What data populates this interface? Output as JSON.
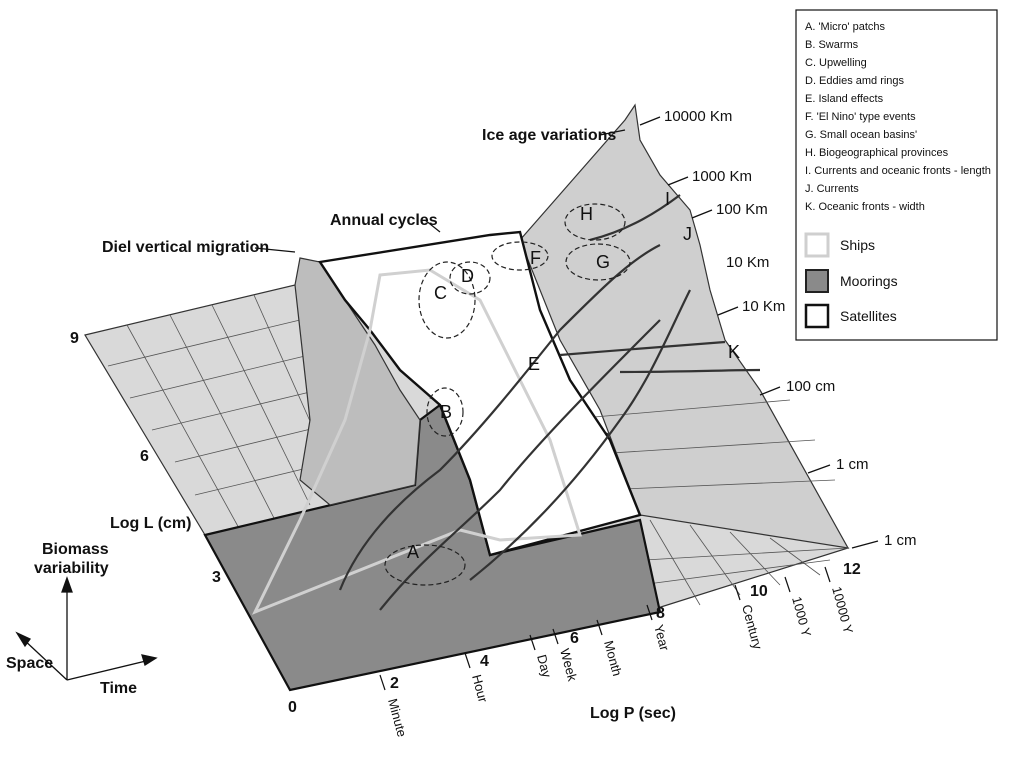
{
  "legend": {
    "items": [
      "A. 'Micro' patchs",
      "B. Swarms",
      "C. Upwelling",
      "D. Eddies amd rings",
      "E. Island effects",
      "F. 'El Nino' type events",
      "G. Small ocean basins'",
      "H. Biogeographical provinces",
      "I. Currents and oceanic fronts - length",
      "J. Currents",
      "K. Oceanic fronts - width"
    ],
    "platforms": [
      {
        "label": "Ships",
        "fill": "#ffffff",
        "stroke": "#cfcfcf"
      },
      {
        "label": "Moorings",
        "fill": "#8a8a8a",
        "stroke": "#222222"
      },
      {
        "label": "Satellites",
        "fill": "#ffffff",
        "stroke": "#111111"
      }
    ]
  },
  "annotations": {
    "ice_age": "Ice age variations",
    "annual": "Annual cycles",
    "diel": "Diel vertical migration"
  },
  "axes": {
    "x_title": "Log P (sec)",
    "y_title": "Log L (cm)",
    "x_ticks": [
      "0",
      "2",
      "4",
      "6",
      "8",
      "10",
      "12"
    ],
    "y_ticks": [
      "3",
      "6",
      "9"
    ],
    "time_labels": [
      "Minute",
      "Hour",
      "Day",
      "Week",
      "Month",
      "Year",
      "Century",
      "1000 Y",
      "10000 Y"
    ],
    "scale_labels": [
      "10000 Km",
      "1000 Km",
      "100 Km",
      "10 Km",
      "10 Km",
      "100 cm",
      "1 cm",
      "1 cm"
    ]
  },
  "zones": [
    "A",
    "B",
    "C",
    "D",
    "E",
    "F",
    "G",
    "H",
    "I",
    "J",
    "K"
  ],
  "compass": {
    "up": "Biomass variability",
    "up_lines": [
      "Biomass",
      "variability"
    ],
    "left": "Space",
    "right": "Time"
  },
  "colors": {
    "ships": "#cfcfcf",
    "moorings": "#8a8a8a",
    "satellites": "#111111",
    "plane": "#d9d9d9"
  }
}
